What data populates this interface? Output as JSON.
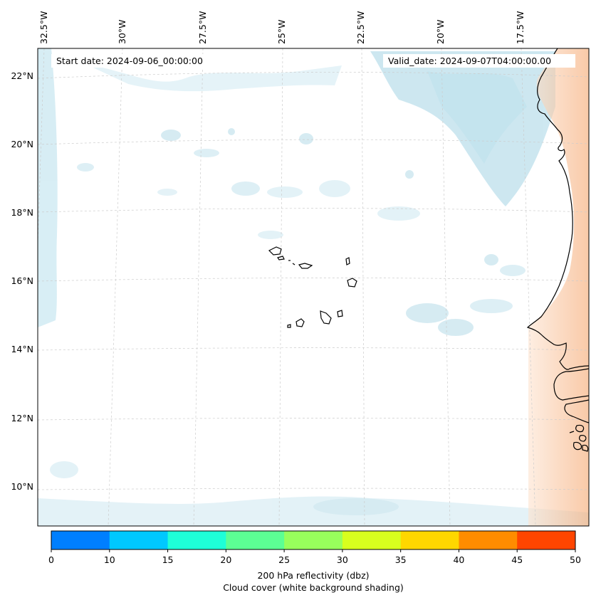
{
  "header": {
    "start_date": "Start date: 2024-09-06_00:00:00",
    "valid_date": "Valid_date: 2024-09-07T04:00:00.00"
  },
  "longitude_labels": [
    "32.5°W",
    "30°W",
    "27.5°W",
    "25°W",
    "22.5°W",
    "20°W",
    "17.5°W"
  ],
  "latitude_labels": [
    "22°N",
    "20°N",
    "18°N",
    "16°N",
    "14°N",
    "12°N",
    "10°N"
  ],
  "colorbar": {
    "ticks": [
      "0",
      "10",
      "15",
      "20",
      "25",
      "30",
      "35",
      "40",
      "45",
      "50"
    ],
    "colors": [
      "#007fff",
      "#00c8ff",
      "#1effd8",
      "#5cff94",
      "#98ff5c",
      "#d8ff1e",
      "#ffd700",
      "#ff8c00",
      "#ff4500"
    ],
    "label_line1": "200 hPa reflectivity (dbz)",
    "label_line2": "Cloud cover (white background shading)"
  },
  "colors": {
    "cloud": "#a9d8e6",
    "land_shade": "#f7b98a",
    "coastline": "#000000",
    "gridline": "#c8c8c8"
  }
}
